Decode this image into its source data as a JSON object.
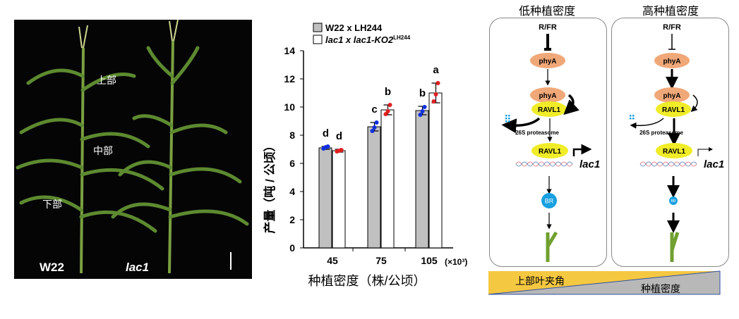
{
  "photo": {
    "labels": {
      "upper": "上部",
      "middle": "中部",
      "lower": "下部"
    },
    "genotypes": [
      "W22",
      "lac1"
    ]
  },
  "chart_data": {
    "type": "bar",
    "categories": [
      "45",
      "75",
      "105"
    ],
    "x_unit": "(×10³)",
    "xlabel": "种植密度（株/公顷）",
    "ylabel": "产量（吨 / 公顷）",
    "ylim": [
      0,
      14
    ],
    "yticks": [
      0,
      2,
      4,
      6,
      8,
      10,
      12,
      14
    ],
    "legend_position": "top-left",
    "series": [
      {
        "name": "W22 x LH244",
        "color": "#c0c0c0",
        "values": [
          7.1,
          8.6,
          9.75
        ],
        "errors": [
          0.1,
          0.3,
          0.3
        ],
        "letters": [
          "d",
          "c",
          "b"
        ],
        "points": [
          [
            7.05,
            7.15,
            7.2
          ],
          [
            8.3,
            8.55,
            8.9
          ],
          [
            9.45,
            9.7,
            10.0
          ]
        ],
        "point_color": "#1030e0"
      },
      {
        "name": "lac1 x lac1-KO2",
        "name_sup": "LH244",
        "color": "#ffffff",
        "values": [
          6.9,
          9.8,
          11.0
        ],
        "errors": [
          0.1,
          0.35,
          0.7
        ],
        "letters": [
          "d",
          "b",
          "a"
        ],
        "points": [
          [
            6.85,
            6.9,
            6.95
          ],
          [
            9.5,
            9.7,
            10.15
          ],
          [
            10.4,
            10.9,
            11.7
          ]
        ],
        "point_color": "#e02020"
      }
    ]
  },
  "diagram": {
    "low": {
      "title": "低种植密度"
    },
    "high": {
      "title": "高种植密度"
    },
    "rfr": "R/FR",
    "phya": "phyA",
    "ravl1": "RAVL1",
    "proteasome": "26S proteasome",
    "gene": "lac1",
    "br": "BR",
    "gradient": {
      "angle": "上部叶夹角",
      "density": "种植密度"
    },
    "colors": {
      "phya": "#f0a878",
      "ravl1": "#f0ec28",
      "br": "#18a0e0",
      "angle": "#f5c842",
      "density": "#b8b8b8"
    }
  }
}
